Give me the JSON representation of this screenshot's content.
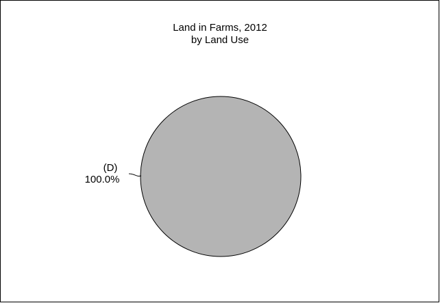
{
  "chart_data": {
    "type": "pie",
    "title": "Land in Farms, 2012",
    "subtitle": "by Land Use",
    "slices": [
      {
        "label": "(D)",
        "value_label": "100.0%",
        "value": 100.0,
        "color": "#b4b4b4"
      }
    ],
    "colors": {
      "outline": "#000000",
      "background": "#ffffff"
    }
  }
}
